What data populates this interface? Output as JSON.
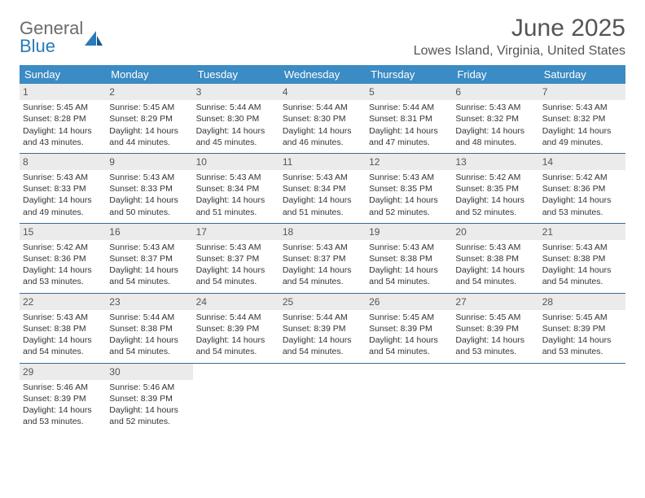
{
  "logo": {
    "line1": "General",
    "line2": "Blue"
  },
  "title": "June 2025",
  "location": "Lowes Island, Virginia, United States",
  "colors": {
    "header_bg": "#3b8bc4",
    "header_text": "#ffffff",
    "row_border": "#3b6a8f",
    "daynum_bg": "#ebebeb",
    "logo_gray": "#6b6b6b",
    "logo_blue": "#2a7ab8"
  },
  "day_names": [
    "Sunday",
    "Monday",
    "Tuesday",
    "Wednesday",
    "Thursday",
    "Friday",
    "Saturday"
  ],
  "weeks": [
    [
      {
        "num": "1",
        "sunrise": "Sunrise: 5:45 AM",
        "sunset": "Sunset: 8:28 PM",
        "day1": "Daylight: 14 hours",
        "day2": "and 43 minutes."
      },
      {
        "num": "2",
        "sunrise": "Sunrise: 5:45 AM",
        "sunset": "Sunset: 8:29 PM",
        "day1": "Daylight: 14 hours",
        "day2": "and 44 minutes."
      },
      {
        "num": "3",
        "sunrise": "Sunrise: 5:44 AM",
        "sunset": "Sunset: 8:30 PM",
        "day1": "Daylight: 14 hours",
        "day2": "and 45 minutes."
      },
      {
        "num": "4",
        "sunrise": "Sunrise: 5:44 AM",
        "sunset": "Sunset: 8:30 PM",
        "day1": "Daylight: 14 hours",
        "day2": "and 46 minutes."
      },
      {
        "num": "5",
        "sunrise": "Sunrise: 5:44 AM",
        "sunset": "Sunset: 8:31 PM",
        "day1": "Daylight: 14 hours",
        "day2": "and 47 minutes."
      },
      {
        "num": "6",
        "sunrise": "Sunrise: 5:43 AM",
        "sunset": "Sunset: 8:32 PM",
        "day1": "Daylight: 14 hours",
        "day2": "and 48 minutes."
      },
      {
        "num": "7",
        "sunrise": "Sunrise: 5:43 AM",
        "sunset": "Sunset: 8:32 PM",
        "day1": "Daylight: 14 hours",
        "day2": "and 49 minutes."
      }
    ],
    [
      {
        "num": "8",
        "sunrise": "Sunrise: 5:43 AM",
        "sunset": "Sunset: 8:33 PM",
        "day1": "Daylight: 14 hours",
        "day2": "and 49 minutes."
      },
      {
        "num": "9",
        "sunrise": "Sunrise: 5:43 AM",
        "sunset": "Sunset: 8:33 PM",
        "day1": "Daylight: 14 hours",
        "day2": "and 50 minutes."
      },
      {
        "num": "10",
        "sunrise": "Sunrise: 5:43 AM",
        "sunset": "Sunset: 8:34 PM",
        "day1": "Daylight: 14 hours",
        "day2": "and 51 minutes."
      },
      {
        "num": "11",
        "sunrise": "Sunrise: 5:43 AM",
        "sunset": "Sunset: 8:34 PM",
        "day1": "Daylight: 14 hours",
        "day2": "and 51 minutes."
      },
      {
        "num": "12",
        "sunrise": "Sunrise: 5:43 AM",
        "sunset": "Sunset: 8:35 PM",
        "day1": "Daylight: 14 hours",
        "day2": "and 52 minutes."
      },
      {
        "num": "13",
        "sunrise": "Sunrise: 5:42 AM",
        "sunset": "Sunset: 8:35 PM",
        "day1": "Daylight: 14 hours",
        "day2": "and 52 minutes."
      },
      {
        "num": "14",
        "sunrise": "Sunrise: 5:42 AM",
        "sunset": "Sunset: 8:36 PM",
        "day1": "Daylight: 14 hours",
        "day2": "and 53 minutes."
      }
    ],
    [
      {
        "num": "15",
        "sunrise": "Sunrise: 5:42 AM",
        "sunset": "Sunset: 8:36 PM",
        "day1": "Daylight: 14 hours",
        "day2": "and 53 minutes."
      },
      {
        "num": "16",
        "sunrise": "Sunrise: 5:43 AM",
        "sunset": "Sunset: 8:37 PM",
        "day1": "Daylight: 14 hours",
        "day2": "and 54 minutes."
      },
      {
        "num": "17",
        "sunrise": "Sunrise: 5:43 AM",
        "sunset": "Sunset: 8:37 PM",
        "day1": "Daylight: 14 hours",
        "day2": "and 54 minutes."
      },
      {
        "num": "18",
        "sunrise": "Sunrise: 5:43 AM",
        "sunset": "Sunset: 8:37 PM",
        "day1": "Daylight: 14 hours",
        "day2": "and 54 minutes."
      },
      {
        "num": "19",
        "sunrise": "Sunrise: 5:43 AM",
        "sunset": "Sunset: 8:38 PM",
        "day1": "Daylight: 14 hours",
        "day2": "and 54 minutes."
      },
      {
        "num": "20",
        "sunrise": "Sunrise: 5:43 AM",
        "sunset": "Sunset: 8:38 PM",
        "day1": "Daylight: 14 hours",
        "day2": "and 54 minutes."
      },
      {
        "num": "21",
        "sunrise": "Sunrise: 5:43 AM",
        "sunset": "Sunset: 8:38 PM",
        "day1": "Daylight: 14 hours",
        "day2": "and 54 minutes."
      }
    ],
    [
      {
        "num": "22",
        "sunrise": "Sunrise: 5:43 AM",
        "sunset": "Sunset: 8:38 PM",
        "day1": "Daylight: 14 hours",
        "day2": "and 54 minutes."
      },
      {
        "num": "23",
        "sunrise": "Sunrise: 5:44 AM",
        "sunset": "Sunset: 8:38 PM",
        "day1": "Daylight: 14 hours",
        "day2": "and 54 minutes."
      },
      {
        "num": "24",
        "sunrise": "Sunrise: 5:44 AM",
        "sunset": "Sunset: 8:39 PM",
        "day1": "Daylight: 14 hours",
        "day2": "and 54 minutes."
      },
      {
        "num": "25",
        "sunrise": "Sunrise: 5:44 AM",
        "sunset": "Sunset: 8:39 PM",
        "day1": "Daylight: 14 hours",
        "day2": "and 54 minutes."
      },
      {
        "num": "26",
        "sunrise": "Sunrise: 5:45 AM",
        "sunset": "Sunset: 8:39 PM",
        "day1": "Daylight: 14 hours",
        "day2": "and 54 minutes."
      },
      {
        "num": "27",
        "sunrise": "Sunrise: 5:45 AM",
        "sunset": "Sunset: 8:39 PM",
        "day1": "Daylight: 14 hours",
        "day2": "and 53 minutes."
      },
      {
        "num": "28",
        "sunrise": "Sunrise: 5:45 AM",
        "sunset": "Sunset: 8:39 PM",
        "day1": "Daylight: 14 hours",
        "day2": "and 53 minutes."
      }
    ],
    [
      {
        "num": "29",
        "sunrise": "Sunrise: 5:46 AM",
        "sunset": "Sunset: 8:39 PM",
        "day1": "Daylight: 14 hours",
        "day2": "and 53 minutes."
      },
      {
        "num": "30",
        "sunrise": "Sunrise: 5:46 AM",
        "sunset": "Sunset: 8:39 PM",
        "day1": "Daylight: 14 hours",
        "day2": "and 52 minutes."
      },
      null,
      null,
      null,
      null,
      null
    ]
  ]
}
